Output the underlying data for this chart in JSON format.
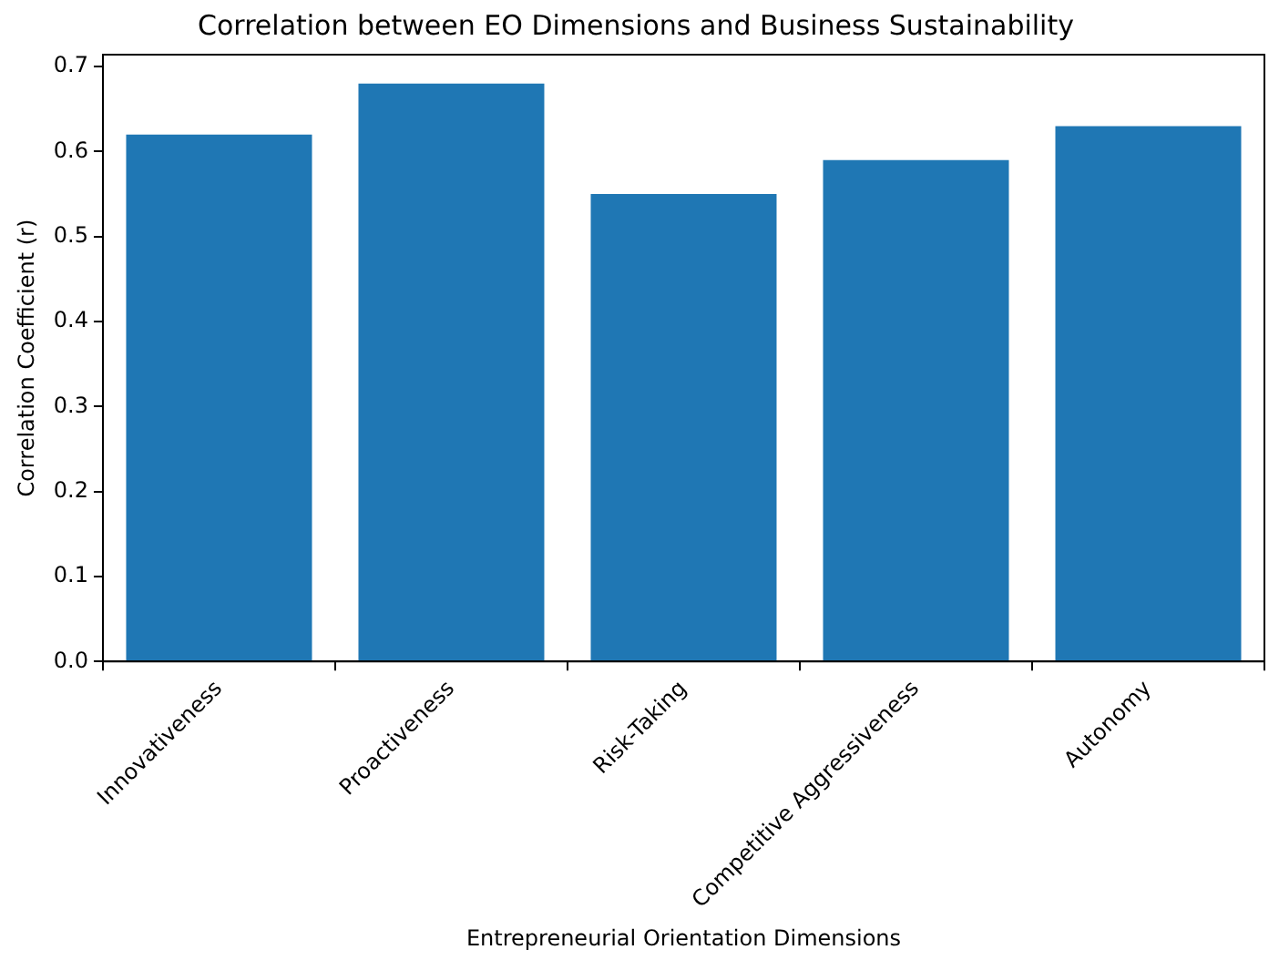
{
  "chart_data": {
    "type": "bar",
    "title": "Correlation between EO Dimensions and Business Sustainability",
    "xlabel": "Entrepreneurial Orientation Dimensions",
    "ylabel": "Correlation Coefficient (r)",
    "categories": [
      "Innovativeness",
      "Proactiveness",
      "Risk-Taking",
      "Competitive Aggressiveness",
      "Autonomy"
    ],
    "values": [
      0.62,
      0.68,
      0.55,
      0.59,
      0.63
    ],
    "color": "#1f77b4",
    "ylim": [
      0,
      0.714
    ],
    "yticks": [
      {
        "value": 0,
        "label": "0.0"
      },
      {
        "value": 0.1,
        "label": "0.1"
      },
      {
        "value": 0.2,
        "label": "0.2"
      },
      {
        "value": 0.3,
        "label": "0.3"
      },
      {
        "value": 0.4,
        "label": "0.4"
      },
      {
        "value": 0.5,
        "label": "0.5"
      },
      {
        "value": 0.6,
        "label": "0.6"
      },
      {
        "value": 0.7,
        "label": "0.7"
      }
    ],
    "grid": false
  }
}
